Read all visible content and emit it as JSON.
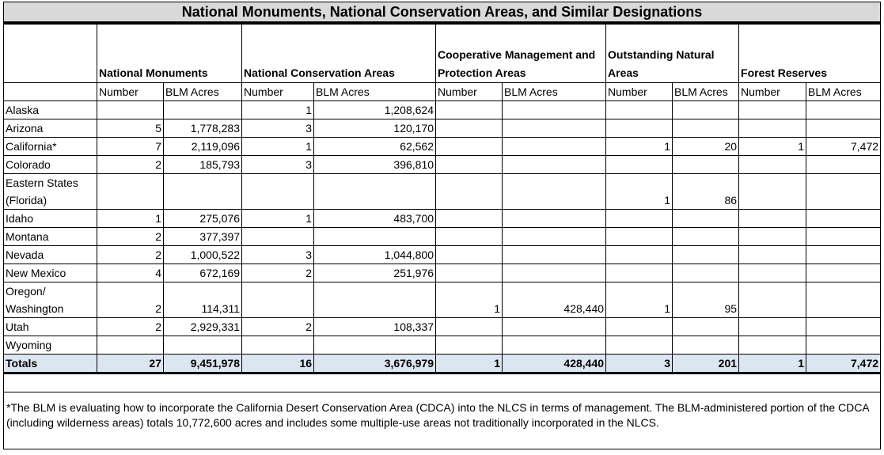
{
  "title": "National Monuments, National Conservation Areas, and Similar Designations",
  "table": {
    "groups": [
      "National Monuments",
      "National Conservation Areas",
      "Cooperative Management and Protection Areas",
      "Outstanding Natural Areas",
      "Forest Reserves"
    ],
    "columns": [
      "Number",
      "BLM Acres",
      "Number",
      "BLM Acres",
      "Number",
      "BLM Acres",
      "Number",
      "BLM Acres",
      "Number",
      "BLM Acres"
    ],
    "rows": [
      [
        "Alaska",
        null,
        null,
        "1",
        "1,208,624",
        null,
        null,
        null,
        null,
        null,
        null
      ],
      [
        "Arizona",
        "5",
        "1,778,283",
        "3",
        "120,170",
        null,
        null,
        null,
        null,
        null,
        null
      ],
      [
        "California*",
        "7",
        "2,119,096",
        "1",
        "62,562",
        null,
        null,
        "1",
        "20",
        "1",
        "7,472"
      ],
      [
        "Colorado",
        "2",
        "185,793",
        "3",
        "396,810",
        null,
        null,
        null,
        null,
        null,
        null
      ],
      [
        "Eastern States (Florida)",
        null,
        null,
        null,
        null,
        null,
        null,
        "1",
        "86",
        null,
        null
      ],
      [
        "Idaho",
        "1",
        "275,076",
        "1",
        "483,700",
        null,
        null,
        null,
        null,
        null,
        null
      ],
      [
        "Montana",
        "2",
        "377,397",
        null,
        null,
        null,
        null,
        null,
        null,
        null,
        null
      ],
      [
        "Nevada",
        "2",
        "1,000,522",
        "3",
        "1,044,800",
        null,
        null,
        null,
        null,
        null,
        null
      ],
      [
        "New Mexico",
        "4",
        "672,169",
        "2",
        "251,976",
        null,
        null,
        null,
        null,
        null,
        null
      ],
      [
        "Oregon/ Washington",
        "2",
        "114,311",
        null,
        null,
        "1",
        "428,440",
        "1",
        "95",
        null,
        null
      ],
      [
        "Utah",
        "2",
        "2,929,331",
        "2",
        "108,337",
        null,
        null,
        null,
        null,
        null,
        null
      ],
      [
        "Wyoming",
        null,
        null,
        null,
        null,
        null,
        null,
        null,
        null,
        null,
        null
      ]
    ],
    "totals": [
      "Totals",
      "27",
      "9,451,978",
      "16",
      "3,676,979",
      "1",
      "428,440",
      "3",
      "201",
      "1",
      "7,472"
    ]
  },
  "footnote": "*The BLM is evaluating how to incorporate the California Desert Conservation Area (CDCA) into the NLCS in terms of management. The BLM-administered portion of the CDCA (including wilderness areas) totals 10,772,600 acres and includes some multiple-use areas not traditionally incorporated in the NLCS."
}
